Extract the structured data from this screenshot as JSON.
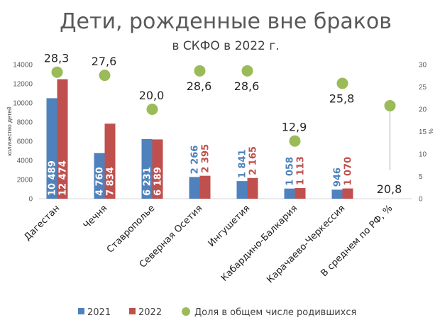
{
  "chart_data": {
    "type": "bar",
    "title": "Дети, рожденные вне браков",
    "subtitle": "в СКФО в 2022 г.",
    "ylabel": "количество детей",
    "y2label": "%",
    "ylim": [
      0,
      14000
    ],
    "y2lim": [
      0,
      30
    ],
    "yticks": [
      "0",
      "2000",
      "4000",
      "6000",
      "8000",
      "10000",
      "12000",
      "14000"
    ],
    "y2ticks": [
      "0",
      "5",
      "10",
      "15",
      "20",
      "25",
      "30"
    ],
    "categories": [
      "Дагестан",
      "Чечня",
      "Ставрополье",
      "Северная Осетия",
      "Ингушетия",
      "Кабардино-Балкария",
      "Карачаево-Черкессия",
      "В среднем по РФ, %"
    ],
    "series": [
      {
        "name": "2021",
        "color": "#4f81bd",
        "values": [
          10489,
          4760,
          6231,
          2266,
          1841,
          1058,
          946,
          null
        ],
        "labels": [
          "10 489",
          "4 760",
          "6 231",
          "2 266",
          "1 841",
          "1 058",
          "946",
          ""
        ]
      },
      {
        "name": "2022",
        "color": "#c0504d",
        "values": [
          12474,
          7834,
          6189,
          2395,
          2165,
          1113,
          1070,
          null
        ],
        "labels": [
          "12 474",
          "7 834",
          "6 189",
          "2 395",
          "2 165",
          "1 113",
          "1 070",
          ""
        ]
      },
      {
        "name": "Доля в общем числе родившихся",
        "color": "#9bbb59",
        "type": "scatter",
        "axis": "right",
        "values": [
          28.3,
          27.6,
          20.0,
          28.6,
          28.6,
          12.9,
          25.8,
          20.8
        ],
        "labels": [
          "28,3",
          "27,6",
          "20,0",
          "28,6",
          "28,6",
          "12,9",
          "25,8",
          "20,8"
        ]
      }
    ],
    "grid": false,
    "legend_position": "bottom"
  }
}
